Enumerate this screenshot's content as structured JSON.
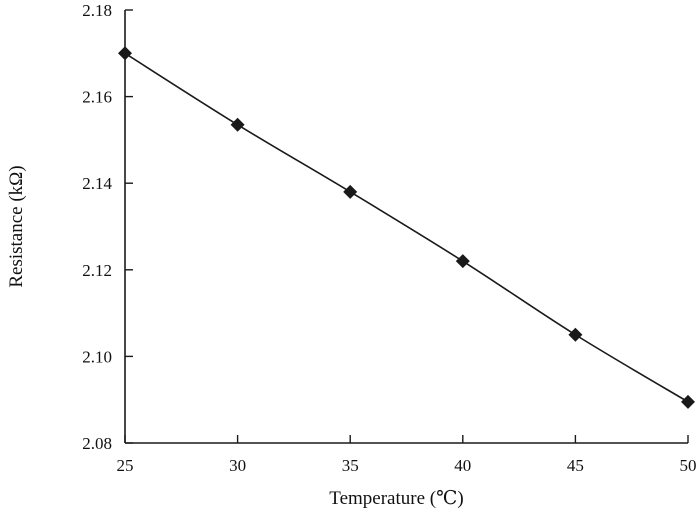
{
  "chart_data": {
    "type": "line",
    "xlabel": "Temperature (℃)",
    "ylabel": "Resistance (kΩ)",
    "xlim": [
      25,
      50
    ],
    "ylim": [
      2.08,
      2.18
    ],
    "x_ticks": [
      "25",
      "30",
      "35",
      "40",
      "45",
      "50"
    ],
    "y_ticks": [
      "2.08",
      "2.10",
      "2.12",
      "2.14",
      "2.16",
      "2.18"
    ],
    "grid": false,
    "marker": "diamond",
    "series": [
      {
        "x": [
          25,
          30,
          35,
          40,
          45,
          50
        ],
        "y": [
          2.17,
          2.1535,
          2.138,
          2.122,
          2.105,
          2.0895
        ]
      }
    ],
    "colors": {
      "line": "#1a1a1a",
      "marker": "#1a1a1a",
      "axis": "#1a1a1a"
    }
  }
}
